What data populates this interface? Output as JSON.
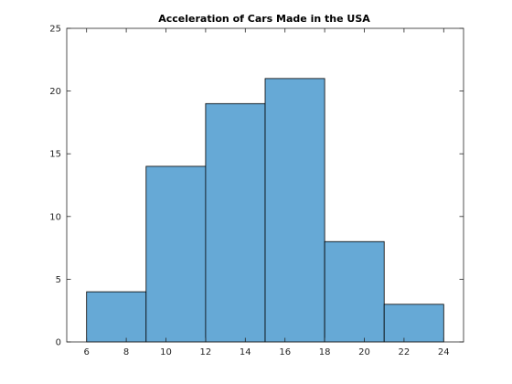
{
  "chart_data": {
    "type": "bar",
    "title": "Acceleration of Cars Made in the USA",
    "xlabel": "",
    "ylabel": "",
    "bin_edges": [
      6,
      9,
      12,
      15,
      18,
      21,
      24
    ],
    "values": [
      4,
      14,
      19,
      21,
      8,
      3
    ],
    "xlim": [
      5,
      25
    ],
    "ylim": [
      0,
      25
    ],
    "xticks": [
      6,
      8,
      10,
      12,
      14,
      16,
      18,
      20,
      22,
      24
    ],
    "yticks": [
      0,
      5,
      10,
      15,
      20,
      25
    ],
    "grid": false,
    "legend": "none",
    "bar_color": "#66a9d6",
    "edge_color": "#000000"
  }
}
